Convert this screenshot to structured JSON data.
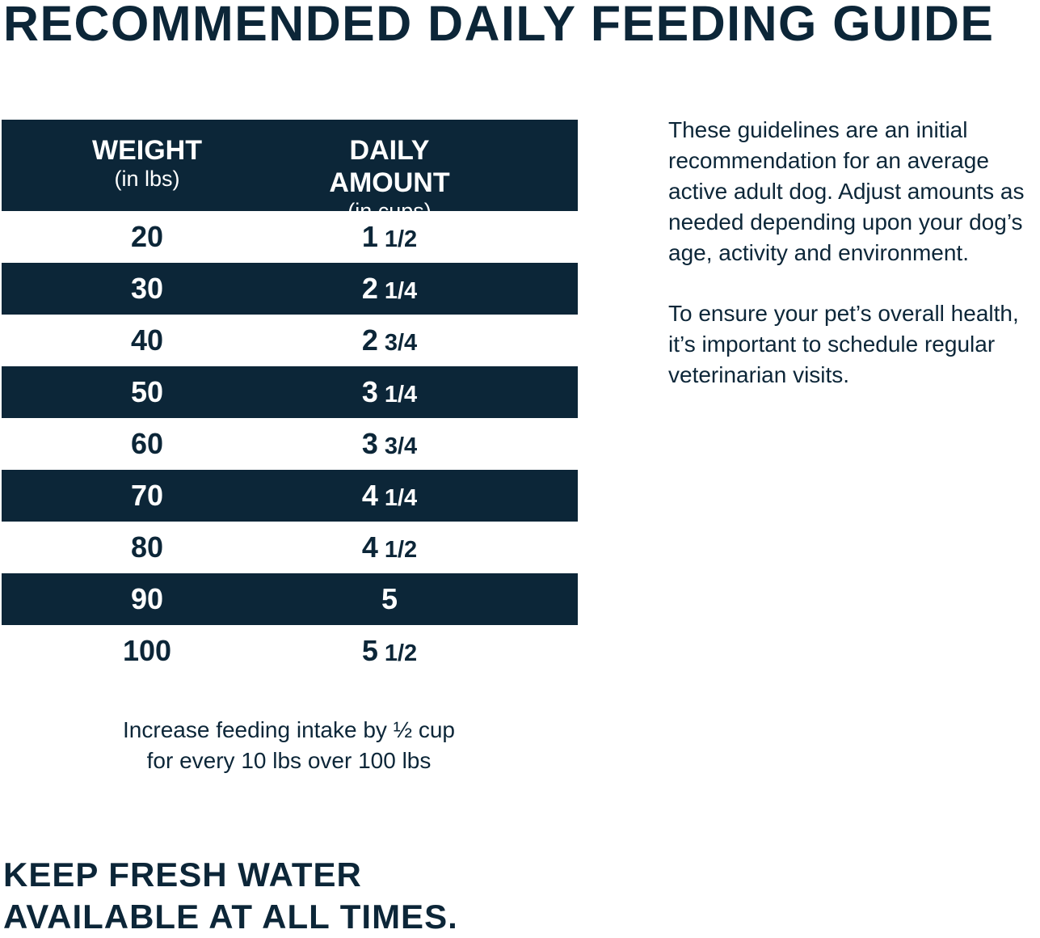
{
  "title": "RECOMMENDED DAILY FEEDING GUIDE",
  "table": {
    "headers": [
      {
        "main": "WEIGHT",
        "sub": "(in lbs)"
      },
      {
        "main": "DAILY AMOUNT",
        "sub": "(in cups)"
      }
    ],
    "rows": [
      {
        "weight": "20",
        "whole": "1",
        "frac": "1/2"
      },
      {
        "weight": "30",
        "whole": "2",
        "frac": "1/4"
      },
      {
        "weight": "40",
        "whole": "2",
        "frac": "3/4"
      },
      {
        "weight": "50",
        "whole": "3",
        "frac": "1/4"
      },
      {
        "weight": "60",
        "whole": "3",
        "frac": "3/4"
      },
      {
        "weight": "70",
        "whole": "4",
        "frac": "1/4"
      },
      {
        "weight": "80",
        "whole": "4",
        "frac": "1/2"
      },
      {
        "weight": "90",
        "whole": "5",
        "frac": ""
      },
      {
        "weight": "100",
        "whole": "5",
        "frac": "1/2"
      }
    ]
  },
  "note": {
    "p1": "These guidelines are an initial recommendation for an average active adult dog. Adjust amounts as needed depending upon your dog’s age, activity and environment.",
    "p2": "To ensure your pet’s overall health, it’s important to schedule regular veterinarian visits."
  },
  "footnote": {
    "line1": "Increase feeding intake by ½ cup",
    "line2": "for every 10 lbs over 100 lbs"
  },
  "water": {
    "line1": "KEEP FRESH WATER",
    "line2": "AVAILABLE AT ALL TIMES."
  },
  "colors": {
    "navy": "#0c2638"
  }
}
